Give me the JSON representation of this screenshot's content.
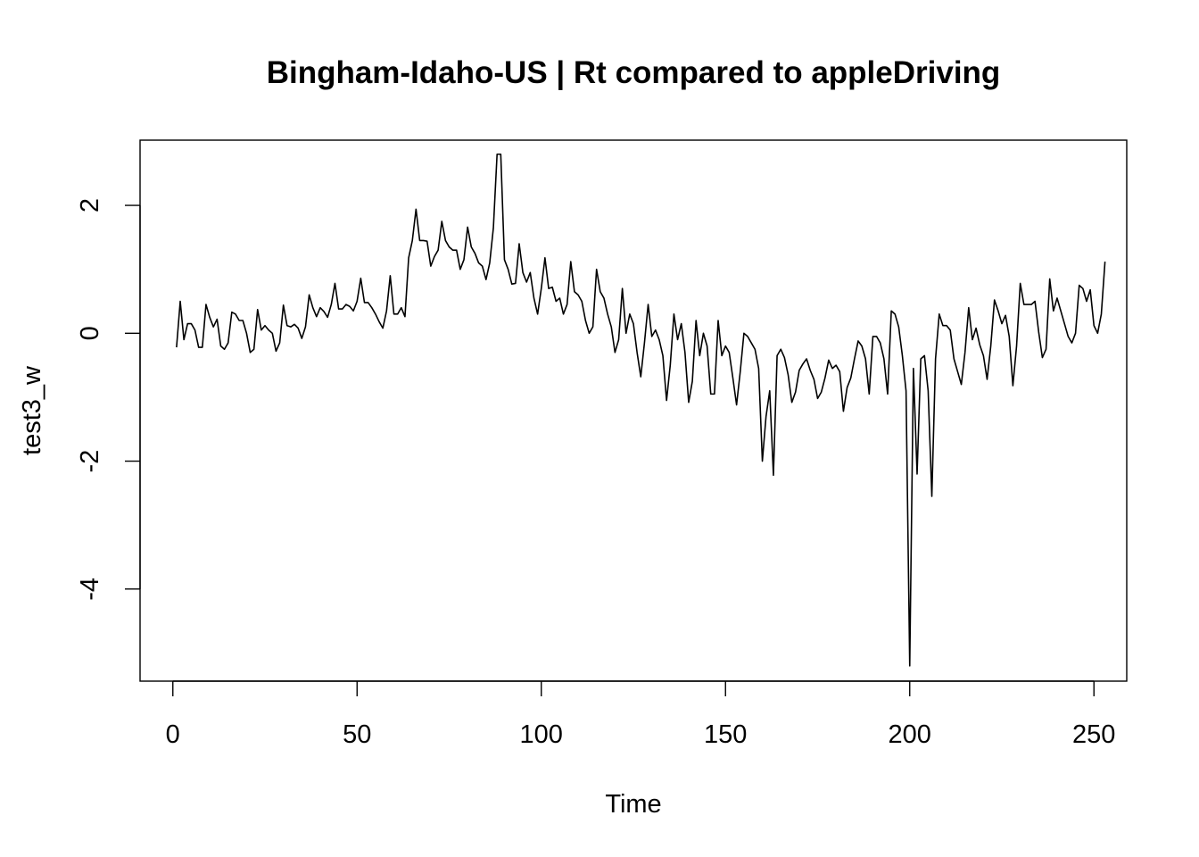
{
  "chart_data": {
    "type": "line",
    "title": "Bingham-Idaho-US | Rt compared to appleDriving",
    "xlabel": "Time",
    "ylabel": "test3_w",
    "xlim": [
      -8.9,
      258.9
    ],
    "ylim": [
      -5.44,
      3.02
    ],
    "xticks": [
      0,
      50,
      100,
      150,
      200,
      250
    ],
    "xtick_labels": [
      "0",
      "50",
      "100",
      "150",
      "200",
      "250"
    ],
    "yticks": [
      -4,
      -2,
      0,
      2
    ],
    "ytick_labels": [
      "-4",
      "-2",
      "0",
      "2"
    ],
    "grid": false,
    "series": [
      {
        "color": "#000000",
        "x_start": 1,
        "x_step": 1,
        "values": [
          -0.22,
          0.5,
          -0.1,
          0.15,
          0.15,
          0.05,
          -0.22,
          -0.22,
          0.45,
          0.25,
          0.1,
          0.22,
          -0.2,
          -0.25,
          -0.15,
          0.33,
          0.3,
          0.2,
          0.2,
          0.0,
          -0.3,
          -0.25,
          0.37,
          0.05,
          0.12,
          0.05,
          0.0,
          -0.28,
          -0.15,
          0.44,
          0.12,
          0.1,
          0.14,
          0.08,
          -0.08,
          0.1,
          0.6,
          0.4,
          0.26,
          0.4,
          0.34,
          0.25,
          0.45,
          0.78,
          0.38,
          0.38,
          0.45,
          0.42,
          0.35,
          0.5,
          0.86,
          0.48,
          0.48,
          0.4,
          0.3,
          0.18,
          0.08,
          0.35,
          0.9,
          0.3,
          0.3,
          0.4,
          0.26,
          1.18,
          1.45,
          1.94,
          1.45,
          1.45,
          1.44,
          1.05,
          1.2,
          1.3,
          1.75,
          1.45,
          1.35,
          1.3,
          1.3,
          1.0,
          1.15,
          1.66,
          1.35,
          1.25,
          1.1,
          1.05,
          0.84,
          1.1,
          1.65,
          2.8,
          2.8,
          1.15,
          1.0,
          0.77,
          0.78,
          1.4,
          0.95,
          0.8,
          0.95,
          0.55,
          0.3,
          0.7,
          1.18,
          0.7,
          0.72,
          0.5,
          0.55,
          0.3,
          0.45,
          1.12,
          0.65,
          0.6,
          0.5,
          0.2,
          0.0,
          0.1,
          1.0,
          0.65,
          0.55,
          0.3,
          0.1,
          -0.3,
          -0.1,
          0.7,
          0.0,
          0.3,
          0.15,
          -0.3,
          -0.68,
          -0.15,
          0.45,
          -0.05,
          0.05,
          -0.1,
          -0.35,
          -1.05,
          -0.5,
          0.3,
          -0.1,
          0.15,
          -0.3,
          -1.08,
          -0.75,
          0.2,
          -0.35,
          0.0,
          -0.2,
          -0.95,
          -0.95,
          0.2,
          -0.35,
          -0.2,
          -0.3,
          -0.7,
          -1.12,
          -0.6,
          0.0,
          -0.05,
          -0.15,
          -0.25,
          -0.55,
          -2.0,
          -1.3,
          -0.9,
          -2.22,
          -0.35,
          -0.25,
          -0.38,
          -0.65,
          -1.08,
          -0.92,
          -0.58,
          -0.48,
          -0.4,
          -0.58,
          -0.72,
          -1.02,
          -0.92,
          -0.7,
          -0.42,
          -0.55,
          -0.5,
          -0.6,
          -1.22,
          -0.85,
          -0.7,
          -0.4,
          -0.12,
          -0.2,
          -0.4,
          -0.95,
          -0.05,
          -0.05,
          -0.15,
          -0.4,
          -0.95,
          0.35,
          0.3,
          0.1,
          -0.35,
          -0.9,
          -5.2,
          -0.55,
          -2.2,
          -0.4,
          -0.35,
          -0.9,
          -2.55,
          -0.4,
          0.3,
          0.12,
          0.12,
          0.05,
          -0.4,
          -0.6,
          -0.8,
          -0.3,
          0.4,
          -0.1,
          0.08,
          -0.18,
          -0.35,
          -0.72,
          -0.2,
          0.52,
          0.35,
          0.15,
          0.28,
          -0.05,
          -0.82,
          -0.2,
          0.78,
          0.45,
          0.45,
          0.45,
          0.5,
          0.02,
          -0.38,
          -0.25,
          0.85,
          0.35,
          0.55,
          0.35,
          0.15,
          -0.05,
          -0.15,
          0.0,
          0.75,
          0.7,
          0.5,
          0.68,
          0.12,
          0.0,
          0.3,
          1.12
        ]
      }
    ]
  }
}
